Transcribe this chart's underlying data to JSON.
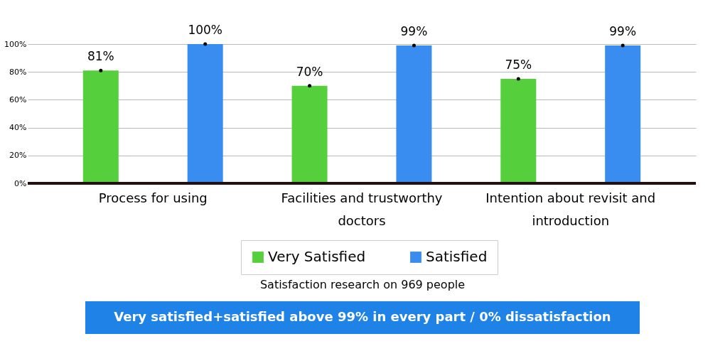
{
  "chart_data": {
    "type": "bar",
    "categories": [
      "Process for using",
      "Facilities and trustworthy doctors",
      "Intention about revisit and introduction"
    ],
    "series": [
      {
        "name": "Very Satisfied",
        "color": "#55cf3b",
        "values": [
          81,
          70,
          75
        ]
      },
      {
        "name": "Satisfied",
        "color": "#3a8df0",
        "values": [
          100,
          99,
          99
        ]
      }
    ],
    "ylim": [
      0,
      100
    ],
    "yticks": [
      {
        "value": 0,
        "label": "0%"
      },
      {
        "value": 20,
        "label": "20%"
      },
      {
        "value": 40,
        "label": "40%"
      },
      {
        "value": 60,
        "label": "60%"
      },
      {
        "value": 80,
        "label": "80%"
      },
      {
        "value": 100,
        "label": "100%"
      }
    ],
    "value_labels": [
      [
        "81%",
        "70%",
        "75%"
      ],
      [
        "100%",
        "99%",
        "99%"
      ]
    ],
    "grid": "y",
    "legend": "bottom",
    "annotations": [
      "Satisfaction research on 969 people",
      "Very satisfied+satisfied above 99% in every part / 0% dissatisfaction"
    ]
  }
}
